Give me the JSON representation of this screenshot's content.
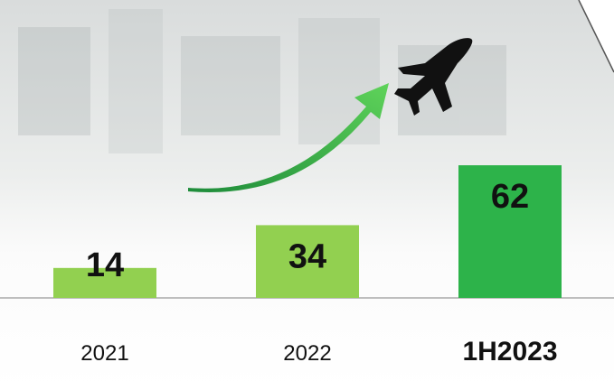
{
  "chart_data": {
    "type": "bar",
    "categories": [
      "2021",
      "2022",
      "1H2023"
    ],
    "values": [
      14,
      34,
      62
    ],
    "colors": [
      "#92d050",
      "#92d050",
      "#2db34a"
    ]
  }
}
